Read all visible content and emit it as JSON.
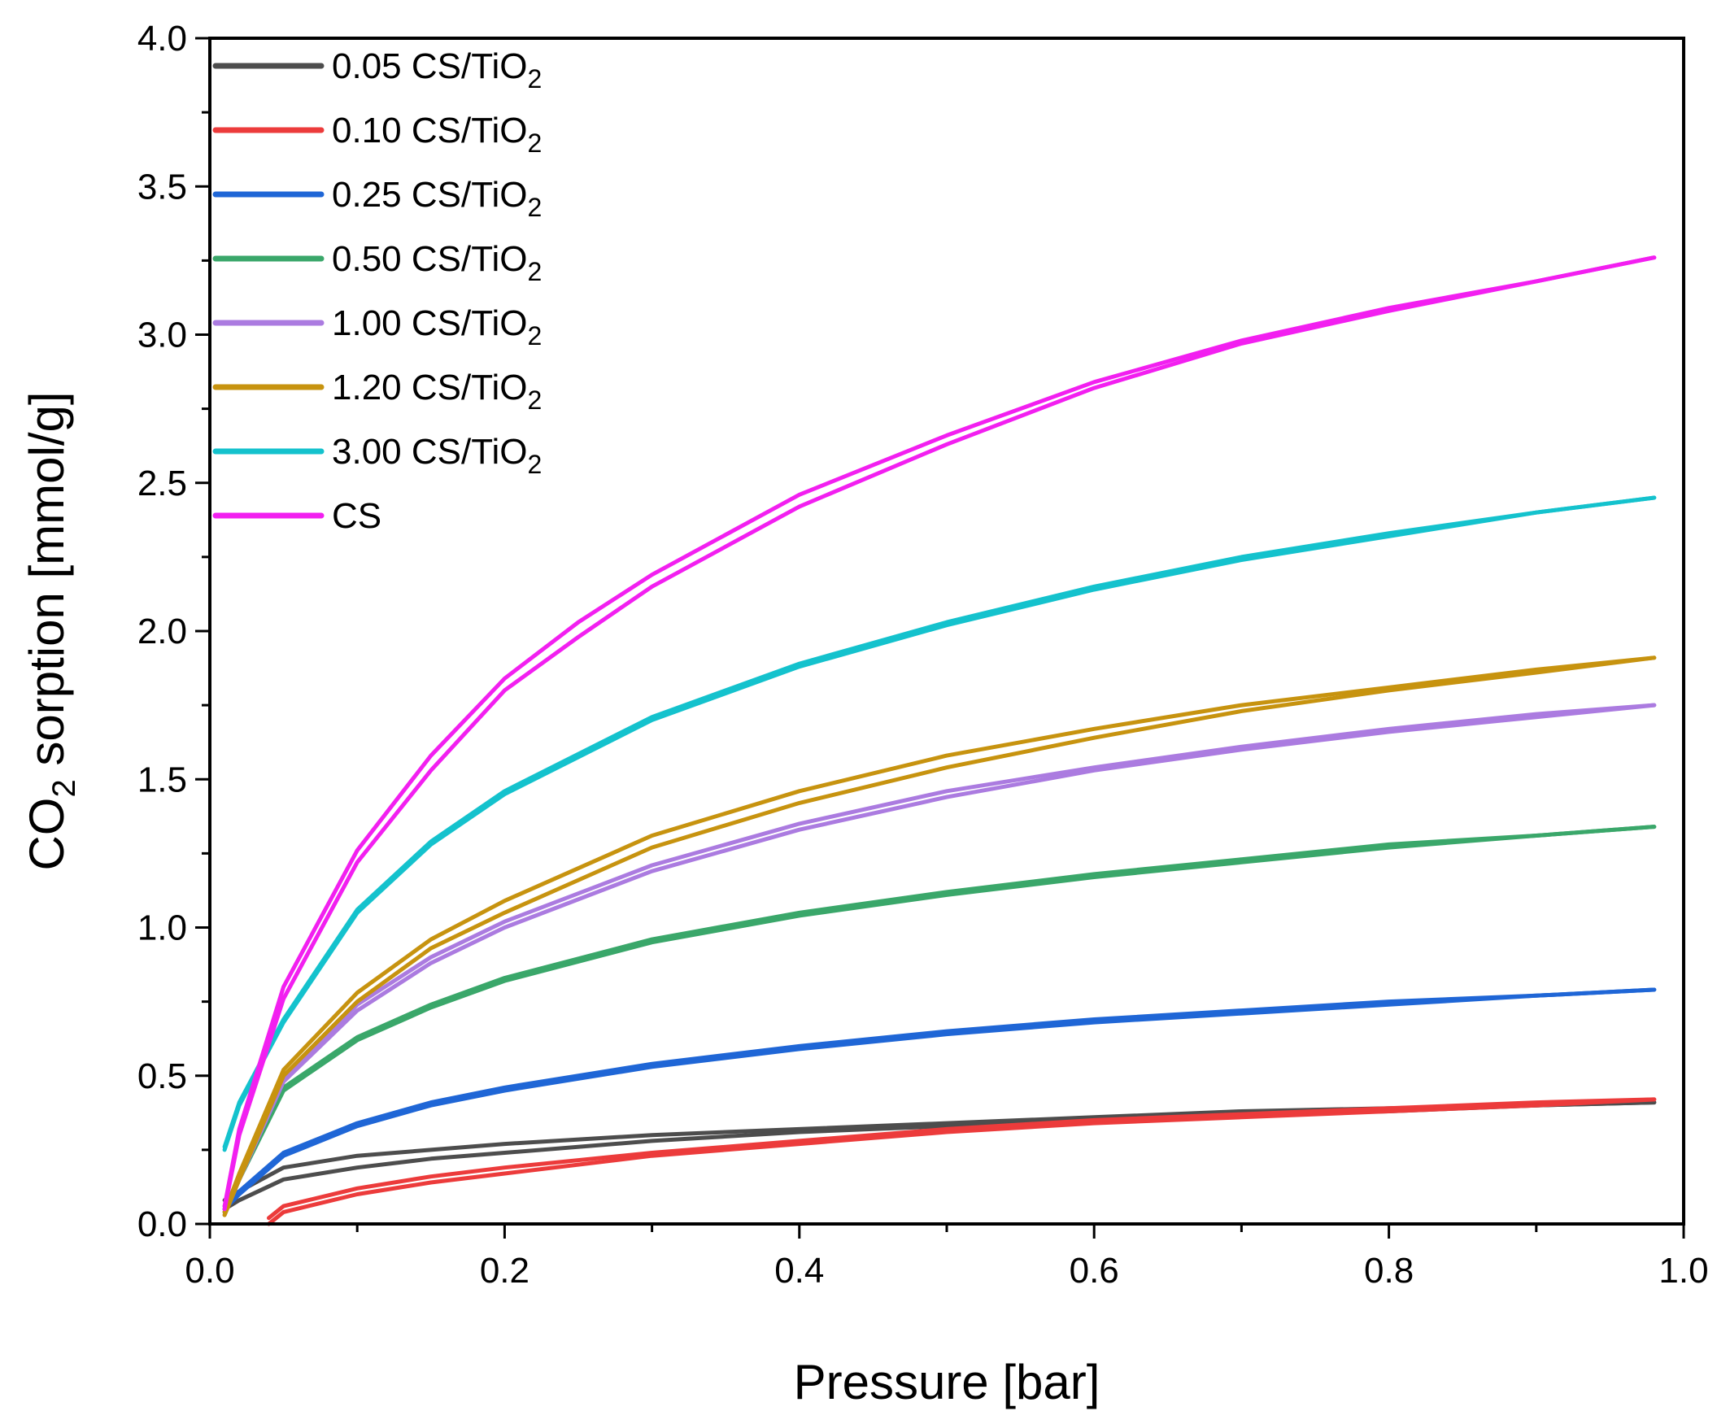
{
  "chart_data": {
    "type": "line",
    "title": "",
    "xlabel": "Pressure [bar]",
    "ylabel": {
      "pre": "CO",
      "sub": "2",
      "post": " sorption [mmol/g]"
    },
    "xlim": [
      0.0,
      1.0
    ],
    "ylim": [
      0.0,
      4.0
    ],
    "xticks": [
      "0.0",
      "0.2",
      "0.4",
      "0.6",
      "0.8",
      "1.0"
    ],
    "yticks": [
      "0.0",
      "0.5",
      "1.0",
      "1.5",
      "2.0",
      "2.5",
      "3.0",
      "3.5",
      "4.0"
    ],
    "legend_position": "top-left",
    "series": [
      {
        "name": "0.05 CS/TiO2",
        "label_main": "0.05 CS/TiO",
        "label_sub": "2",
        "color": "#4d4d4d",
        "x": [
          0.01,
          0.02,
          0.05,
          0.1,
          0.15,
          0.2,
          0.3,
          0.4,
          0.5,
          0.6,
          0.7,
          0.8,
          0.9,
          0.98
        ],
        "adsorption": [
          0.05,
          0.08,
          0.15,
          0.19,
          0.22,
          0.24,
          0.28,
          0.31,
          0.33,
          0.35,
          0.37,
          0.38,
          0.4,
          0.41
        ],
        "desorption": [
          0.08,
          0.11,
          0.19,
          0.23,
          0.25,
          0.27,
          0.3,
          0.32,
          0.34,
          0.36,
          0.38,
          0.39,
          0.4,
          0.41
        ]
      },
      {
        "name": "0.10 CS/TiO2",
        "label_main": "0.10 CS/TiO",
        "label_sub": "2",
        "color": "#ec3b3b",
        "x": [
          0.04,
          0.05,
          0.1,
          0.15,
          0.2,
          0.3,
          0.4,
          0.5,
          0.6,
          0.7,
          0.8,
          0.9,
          0.98
        ],
        "adsorption": [
          0.0,
          0.04,
          0.1,
          0.14,
          0.17,
          0.23,
          0.27,
          0.31,
          0.34,
          0.36,
          0.38,
          0.4,
          0.42
        ],
        "desorption": [
          0.02,
          0.06,
          0.12,
          0.16,
          0.19,
          0.24,
          0.28,
          0.32,
          0.35,
          0.37,
          0.39,
          0.41,
          0.42
        ]
      },
      {
        "name": "0.25 CS/TiO2",
        "label_main": "0.25 CS/TiO",
        "label_sub": "2",
        "color": "#1f66d6",
        "x": [
          0.01,
          0.02,
          0.05,
          0.1,
          0.15,
          0.2,
          0.3,
          0.4,
          0.5,
          0.6,
          0.7,
          0.8,
          0.9,
          0.98
        ],
        "adsorption": [
          0.05,
          0.1,
          0.23,
          0.33,
          0.4,
          0.45,
          0.53,
          0.59,
          0.64,
          0.68,
          0.71,
          0.74,
          0.77,
          0.79
        ],
        "desorption": [
          0.06,
          0.11,
          0.24,
          0.34,
          0.41,
          0.46,
          0.54,
          0.6,
          0.65,
          0.69,
          0.72,
          0.75,
          0.77,
          0.79
        ]
      },
      {
        "name": "0.50 CS/TiO2",
        "label_main": "0.50 CS/TiO",
        "label_sub": "2",
        "color": "#3aa76a",
        "x": [
          0.01,
          0.02,
          0.05,
          0.1,
          0.15,
          0.2,
          0.3,
          0.4,
          0.5,
          0.6,
          0.7,
          0.8,
          0.9,
          0.98
        ],
        "adsorption": [
          0.04,
          0.15,
          0.45,
          0.62,
          0.73,
          0.82,
          0.95,
          1.04,
          1.11,
          1.17,
          1.22,
          1.27,
          1.31,
          1.34
        ],
        "desorption": [
          0.05,
          0.16,
          0.46,
          0.63,
          0.74,
          0.83,
          0.96,
          1.05,
          1.12,
          1.18,
          1.23,
          1.28,
          1.31,
          1.34
        ]
      },
      {
        "name": "1.00 CS/TiO2",
        "label_main": "1.00 CS/TiO",
        "label_sub": "2",
        "color": "#ab7be0",
        "x": [
          0.01,
          0.02,
          0.05,
          0.1,
          0.15,
          0.2,
          0.3,
          0.4,
          0.5,
          0.6,
          0.7,
          0.8,
          0.9,
          0.98
        ],
        "adsorption": [
          0.03,
          0.15,
          0.48,
          0.72,
          0.88,
          1.0,
          1.19,
          1.33,
          1.44,
          1.53,
          1.6,
          1.66,
          1.71,
          1.75
        ],
        "desorption": [
          0.04,
          0.16,
          0.49,
          0.74,
          0.9,
          1.02,
          1.21,
          1.35,
          1.46,
          1.54,
          1.61,
          1.67,
          1.72,
          1.75
        ]
      },
      {
        "name": "1.20 CS/TiO2",
        "label_main": "1.20 CS/TiO",
        "label_sub": "2",
        "color": "#c7930f",
        "x": [
          0.01,
          0.02,
          0.05,
          0.1,
          0.15,
          0.2,
          0.3,
          0.4,
          0.5,
          0.6,
          0.7,
          0.8,
          0.9,
          0.98
        ],
        "adsorption": [
          0.03,
          0.15,
          0.5,
          0.75,
          0.93,
          1.05,
          1.27,
          1.42,
          1.54,
          1.64,
          1.73,
          1.8,
          1.86,
          1.91
        ],
        "desorption": [
          0.04,
          0.17,
          0.52,
          0.78,
          0.96,
          1.09,
          1.31,
          1.46,
          1.58,
          1.67,
          1.75,
          1.81,
          1.87,
          1.91
        ]
      },
      {
        "name": "3.00 CS/TiO2",
        "label_main": "3.00 CS/TiO",
        "label_sub": "2",
        "color": "#14c2cd",
        "x": [
          0.01,
          0.02,
          0.05,
          0.1,
          0.15,
          0.2,
          0.3,
          0.4,
          0.5,
          0.6,
          0.7,
          0.8,
          0.9,
          0.98
        ],
        "adsorption": [
          0.25,
          0.4,
          0.68,
          1.05,
          1.28,
          1.45,
          1.7,
          1.88,
          2.02,
          2.14,
          2.24,
          2.32,
          2.4,
          2.45
        ],
        "desorption": [
          0.26,
          0.41,
          0.69,
          1.06,
          1.29,
          1.46,
          1.71,
          1.89,
          2.03,
          2.15,
          2.25,
          2.33,
          2.4,
          2.45
        ]
      },
      {
        "name": "CS",
        "label_main": "CS",
        "label_sub": "",
        "color": "#f21ff0",
        "x": [
          0.01,
          0.02,
          0.05,
          0.1,
          0.15,
          0.2,
          0.25,
          0.3,
          0.4,
          0.5,
          0.6,
          0.7,
          0.8,
          0.9,
          0.98
        ],
        "adsorption": [
          0.05,
          0.3,
          0.76,
          1.22,
          1.53,
          1.8,
          1.98,
          2.15,
          2.42,
          2.63,
          2.82,
          2.97,
          3.08,
          3.18,
          3.26
        ],
        "desorption": [
          0.06,
          0.32,
          0.8,
          1.26,
          1.58,
          1.84,
          2.03,
          2.19,
          2.46,
          2.66,
          2.84,
          2.98,
          3.09,
          3.18,
          3.26
        ]
      }
    ]
  }
}
